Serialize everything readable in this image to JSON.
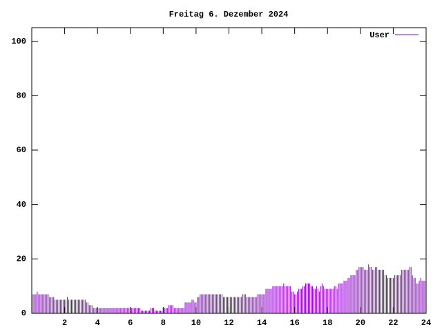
{
  "chart_data": {
    "type": "impulse",
    "title": "Freitag 6. Dezember 2024",
    "color": "#9400d3",
    "xlim": [
      0,
      24
    ],
    "xticks": [
      2,
      4,
      6,
      8,
      10,
      12,
      14,
      16,
      18,
      20,
      22,
      24
    ],
    "ylim": [
      0,
      105
    ],
    "yticks": [
      0,
      20,
      40,
      60,
      80,
      100
    ],
    "legend": "top-right",
    "x": [
      0,
      0.083,
      0.167,
      0.25,
      0.333,
      0.417,
      0.5,
      0.583,
      0.667,
      0.75,
      0.833,
      0.917,
      1,
      1.083,
      1.167,
      1.25,
      1.333,
      1.417,
      1.5,
      1.583,
      1.667,
      1.75,
      1.833,
      1.917,
      2,
      2.083,
      2.167,
      2.25,
      2.333,
      2.417,
      2.5,
      2.583,
      2.667,
      2.75,
      2.833,
      2.917,
      3,
      3.083,
      3.167,
      3.25,
      3.333,
      3.417,
      3.5,
      3.583,
      3.667,
      3.75,
      3.833,
      3.917,
      4,
      4.083,
      4.167,
      4.25,
      4.333,
      4.417,
      4.5,
      4.583,
      4.667,
      4.75,
      4.833,
      4.917,
      5,
      5.083,
      5.167,
      5.25,
      5.333,
      5.417,
      5.5,
      5.583,
      5.667,
      5.75,
      5.833,
      5.917,
      6,
      6.083,
      6.167,
      6.25,
      6.333,
      6.417,
      6.5,
      6.583,
      6.667,
      6.75,
      6.833,
      6.917,
      7,
      7.083,
      7.167,
      7.25,
      7.333,
      7.417,
      7.5,
      7.583,
      7.667,
      7.75,
      7.833,
      7.917,
      8,
      8.083,
      8.167,
      8.25,
      8.333,
      8.417,
      8.5,
      8.583,
      8.667,
      8.75,
      8.833,
      8.917,
      9,
      9.083,
      9.167,
      9.25,
      9.333,
      9.417,
      9.5,
      9.583,
      9.667,
      9.75,
      9.833,
      9.917,
      10,
      10.083,
      10.167,
      10.25,
      10.333,
      10.417,
      10.5,
      10.583,
      10.667,
      10.75,
      10.833,
      10.917,
      11,
      11.083,
      11.167,
      11.25,
      11.333,
      11.417,
      11.5,
      11.583,
      11.667,
      11.75,
      11.833,
      11.917,
      12,
      12.083,
      12.167,
      12.25,
      12.333,
      12.417,
      12.5,
      12.583,
      12.667,
      12.75,
      12.833,
      12.917,
      13,
      13.083,
      13.167,
      13.25,
      13.333,
      13.417,
      13.5,
      13.583,
      13.667,
      13.75,
      13.833,
      13.917,
      14,
      14.083,
      14.167,
      14.25,
      14.333,
      14.417,
      14.5,
      14.583,
      14.667,
      14.75,
      14.833,
      14.917,
      15,
      15.083,
      15.167,
      15.25,
      15.333,
      15.417,
      15.5,
      15.583,
      15.667,
      15.75,
      15.833,
      15.917,
      16,
      16.083,
      16.167,
      16.25,
      16.333,
      16.417,
      16.5,
      16.583,
      16.667,
      16.75,
      16.833,
      16.917,
      17,
      17.083,
      17.167,
      17.25,
      17.333,
      17.417,
      17.5,
      17.583,
      17.667,
      17.75,
      17.833,
      17.917,
      18,
      18.083,
      18.167,
      18.25,
      18.333,
      18.417,
      18.5,
      18.583,
      18.667,
      18.75,
      18.833,
      18.917,
      19,
      19.083,
      19.167,
      19.25,
      19.333,
      19.417,
      19.5,
      19.583,
      19.667,
      19.75,
      19.833,
      19.917,
      20,
      20.083,
      20.167,
      20.25,
      20.333,
      20.417,
      20.5,
      20.583,
      20.667,
      20.75,
      20.833,
      20.917,
      21,
      21.083,
      21.167,
      21.25,
      21.333,
      21.417,
      21.5,
      21.583,
      21.667,
      21.75,
      21.833,
      21.917,
      22,
      22.083,
      22.167,
      22.25,
      22.333,
      22.417,
      22.5,
      22.583,
      22.667,
      22.75,
      22.833,
      22.917,
      23,
      23.083,
      23.167,
      23.25,
      23.333,
      23.417,
      23.5,
      23.583,
      23.667,
      23.75,
      23.833,
      23.917
    ],
    "series": [
      {
        "name": "User",
        "color": "#9400d3",
        "values": [
          7,
          7,
          7,
          7,
          8,
          7,
          7,
          7,
          7,
          7,
          7,
          7,
          7,
          6,
          6,
          6,
          6,
          5,
          5,
          5,
          5,
          5,
          5,
          5,
          5,
          5,
          6,
          5,
          5,
          5,
          5,
          5,
          5,
          5,
          5,
          5,
          5,
          5,
          5,
          5,
          4,
          4,
          3,
          3,
          3,
          2,
          2,
          2,
          2,
          2,
          2,
          2,
          2,
          2,
          2,
          2,
          2,
          2,
          2,
          2,
          2,
          2,
          2,
          2,
          2,
          2,
          2,
          2,
          2,
          2,
          2,
          2,
          2,
          2,
          2,
          2,
          2,
          2,
          2,
          2,
          1,
          1,
          1,
          1,
          1,
          1,
          1,
          2,
          2,
          2,
          1,
          1,
          1,
          1,
          1,
          1,
          2,
          2,
          2,
          2,
          3,
          3,
          3,
          3,
          2,
          2,
          2,
          2,
          2,
          2,
          2,
          2,
          4,
          4,
          4,
          4,
          4,
          5,
          5,
          4,
          4,
          6,
          6,
          7,
          7,
          7,
          7,
          7,
          7,
          7,
          7,
          7,
          7,
          7,
          7,
          7,
          7,
          7,
          7,
          7,
          6,
          6,
          6,
          6,
          6,
          6,
          6,
          6,
          6,
          6,
          6,
          6,
          6,
          6,
          7,
          7,
          7,
          6,
          6,
          6,
          6,
          6,
          6,
          6,
          6,
          7,
          7,
          7,
          7,
          7,
          7,
          9,
          9,
          9,
          9,
          9,
          10,
          10,
          10,
          10,
          10,
          10,
          10,
          10,
          11,
          10,
          10,
          10,
          10,
          10,
          8,
          8,
          7,
          7,
          8,
          9,
          9,
          9,
          10,
          10,
          11,
          11,
          11,
          11,
          10,
          10,
          9,
          9,
          10,
          9,
          8,
          10,
          11,
          10,
          9,
          9,
          9,
          9,
          9,
          9,
          9,
          10,
          10,
          9,
          11,
          11,
          11,
          11,
          12,
          12,
          12,
          13,
          13,
          14,
          14,
          14,
          14,
          16,
          16,
          17,
          17,
          17,
          17,
          16,
          16,
          16,
          18,
          17,
          17,
          16,
          16,
          17,
          17,
          16,
          16,
          16,
          16,
          16,
          14,
          14,
          13,
          13,
          13,
          13,
          13,
          14,
          14,
          14,
          14,
          14,
          16,
          16,
          16,
          16,
          16,
          16,
          17,
          17,
          14,
          13,
          13,
          11,
          11,
          12,
          13,
          12,
          12,
          12
        ]
      }
    ]
  }
}
